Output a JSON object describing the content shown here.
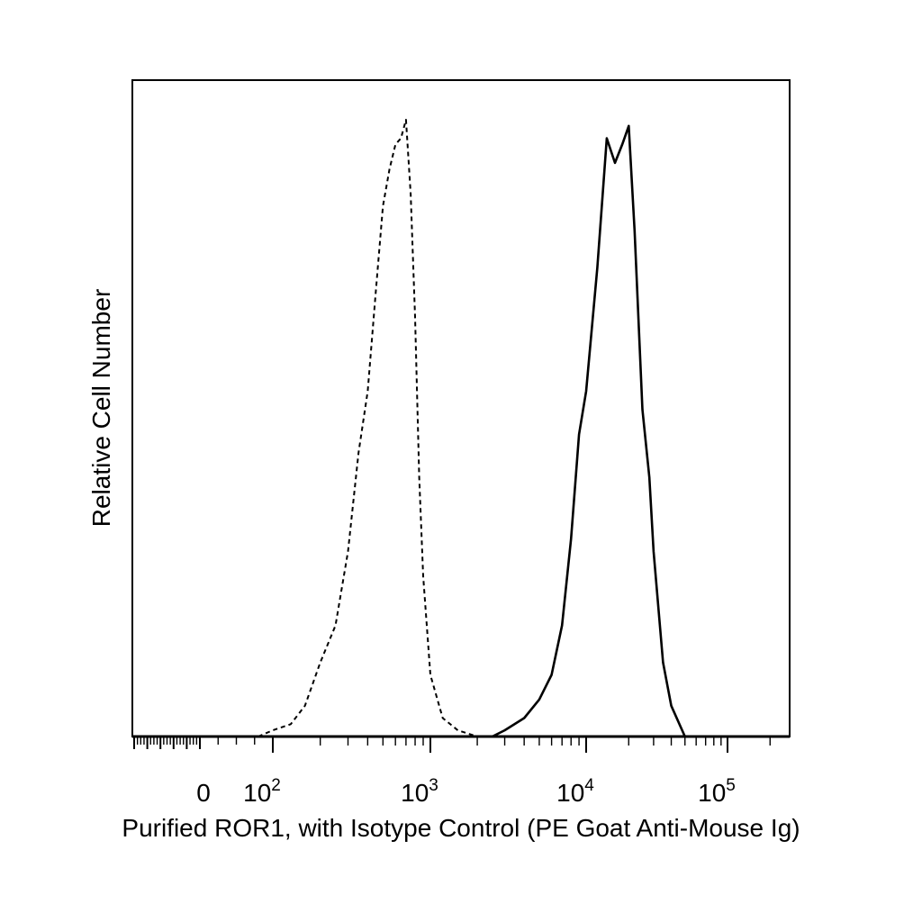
{
  "chart_data": {
    "type": "line",
    "xlabel": "Purified ROR1, with Isotype Control (PE Goat Anti-Mouse Ig)",
    "ylabel": "Relative Cell Number",
    "x_scale": "biexponential",
    "xlim": [
      -500,
      250000
    ],
    "ylim": [
      0,
      1
    ],
    "grid": false,
    "x_tick_labels": [
      {
        "value": 0,
        "base": "0",
        "exp": ""
      },
      {
        "value": 100,
        "base": "10",
        "exp": "2"
      },
      {
        "value": 1000,
        "base": "10",
        "exp": "3"
      },
      {
        "value": 10000,
        "base": "10",
        "exp": "4"
      },
      {
        "value": 100000,
        "base": "10",
        "exp": "5"
      }
    ],
    "series": [
      {
        "style": "dashed",
        "x": [
          80,
          100,
          130,
          160,
          200,
          250,
          300,
          350,
          400,
          450,
          500,
          550,
          600,
          650,
          700,
          750,
          800,
          850,
          900,
          1000,
          1200,
          1500,
          2000,
          2500,
          3000
        ],
        "y": [
          0.0,
          0.01,
          0.02,
          0.05,
          0.12,
          0.18,
          0.3,
          0.46,
          0.56,
          0.72,
          0.86,
          0.92,
          0.96,
          0.97,
          1.0,
          0.88,
          0.68,
          0.42,
          0.26,
          0.1,
          0.03,
          0.01,
          0.0,
          0.0,
          0.0
        ]
      },
      {
        "style": "solid",
        "x": [
          2500,
          3000,
          4000,
          5000,
          6000,
          7000,
          8000,
          9000,
          10000,
          12000,
          14000,
          16000,
          18000,
          20000,
          22000,
          25000,
          28000,
          30000,
          35000,
          40000,
          50000,
          60000,
          70000,
          80000
        ],
        "y": [
          0.0,
          0.01,
          0.03,
          0.06,
          0.1,
          0.18,
          0.32,
          0.49,
          0.56,
          0.76,
          0.97,
          0.93,
          0.96,
          0.99,
          0.82,
          0.53,
          0.42,
          0.3,
          0.12,
          0.05,
          0.0,
          0.0,
          0.0,
          0.0
        ]
      }
    ]
  }
}
